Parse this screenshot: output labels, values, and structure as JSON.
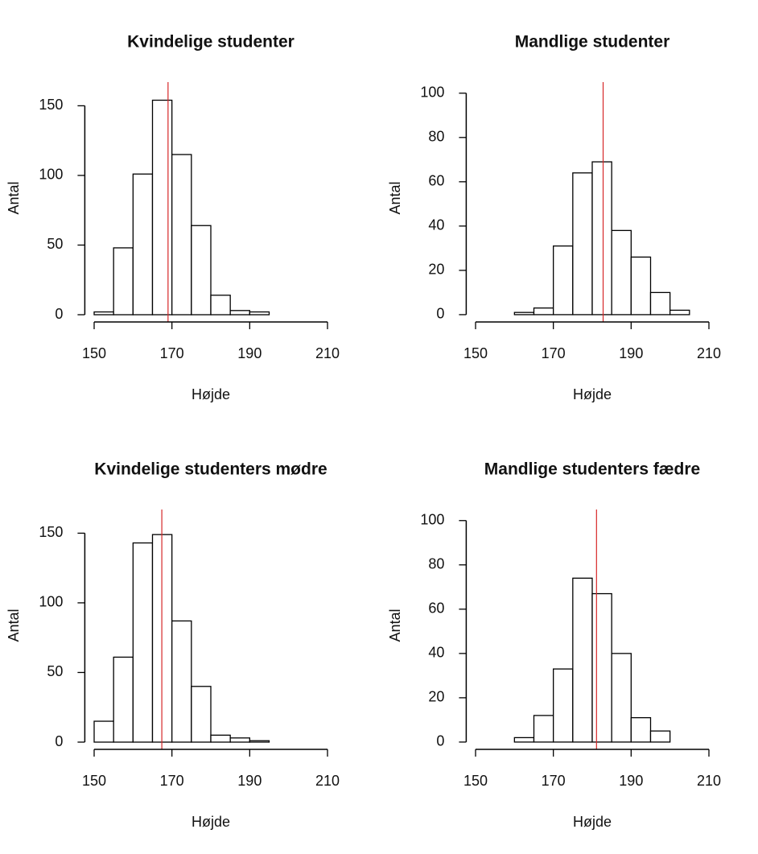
{
  "chart_data": [
    {
      "type": "histogram",
      "title": "Kvindelige studenter",
      "xlabel": "Højde",
      "ylabel": "Antal",
      "bins": [
        150,
        155,
        160,
        165,
        170,
        175,
        180,
        185,
        190,
        195,
        200,
        205,
        210
      ],
      "values": [
        2,
        48,
        101,
        154,
        115,
        64,
        14,
        3,
        2,
        0,
        0,
        0
      ],
      "xlim": [
        147.6,
        212.4
      ],
      "xticks": [
        150,
        170,
        190,
        210
      ],
      "ylim": [
        -5.2,
        167
      ],
      "yticks": [
        0,
        50,
        100,
        150
      ],
      "color": "#ffffff",
      "vline": 169,
      "vline_color": "#d62728"
    },
    {
      "type": "histogram",
      "title": "Mandlige studenter",
      "xlabel": "Højde",
      "ylabel": "Antal",
      "bins": [
        150,
        155,
        160,
        165,
        170,
        175,
        180,
        185,
        190,
        195,
        200,
        205,
        210
      ],
      "values": [
        0,
        0,
        1,
        3,
        31,
        64,
        69,
        38,
        26,
        10,
        2,
        0
      ],
      "xlim": [
        147.6,
        212.4
      ],
      "xticks": [
        150,
        170,
        190,
        210
      ],
      "ylim": [
        -3.3,
        105
      ],
      "yticks": [
        0,
        20,
        40,
        60,
        80,
        100
      ],
      "color": "#ffffff",
      "vline": 182.8,
      "vline_color": "#d62728"
    },
    {
      "type": "histogram",
      "title": "Kvindelige studenters mødre",
      "xlabel": "Højde",
      "ylabel": "Antal",
      "bins": [
        150,
        155,
        160,
        165,
        170,
        175,
        180,
        185,
        190,
        195,
        200,
        205,
        210
      ],
      "values": [
        15,
        61,
        143,
        149,
        87,
        40,
        5,
        3,
        1,
        0,
        0,
        0
      ],
      "xlim": [
        147.6,
        212.4
      ],
      "xticks": [
        150,
        170,
        190,
        210
      ],
      "ylim": [
        -5.2,
        167
      ],
      "yticks": [
        0,
        50,
        100,
        150
      ],
      "color": "#ffffff",
      "vline": 167.4,
      "vline_color": "#d62728"
    },
    {
      "type": "histogram",
      "title": "Mandlige studenters fædre",
      "xlabel": "Højde",
      "ylabel": "Antal",
      "bins": [
        150,
        155,
        160,
        165,
        170,
        175,
        180,
        185,
        190,
        195,
        200,
        205,
        210
      ],
      "values": [
        0,
        0,
        2,
        12,
        33,
        74,
        67,
        40,
        11,
        5,
        0,
        0
      ],
      "xlim": [
        147.6,
        212.4
      ],
      "xticks": [
        150,
        170,
        190,
        210
      ],
      "ylim": [
        -3.3,
        105
      ],
      "yticks": [
        0,
        20,
        40,
        60,
        80,
        100
      ],
      "color": "#ffffff",
      "vline": 181.1,
      "vline_color": "#d62728"
    }
  ]
}
